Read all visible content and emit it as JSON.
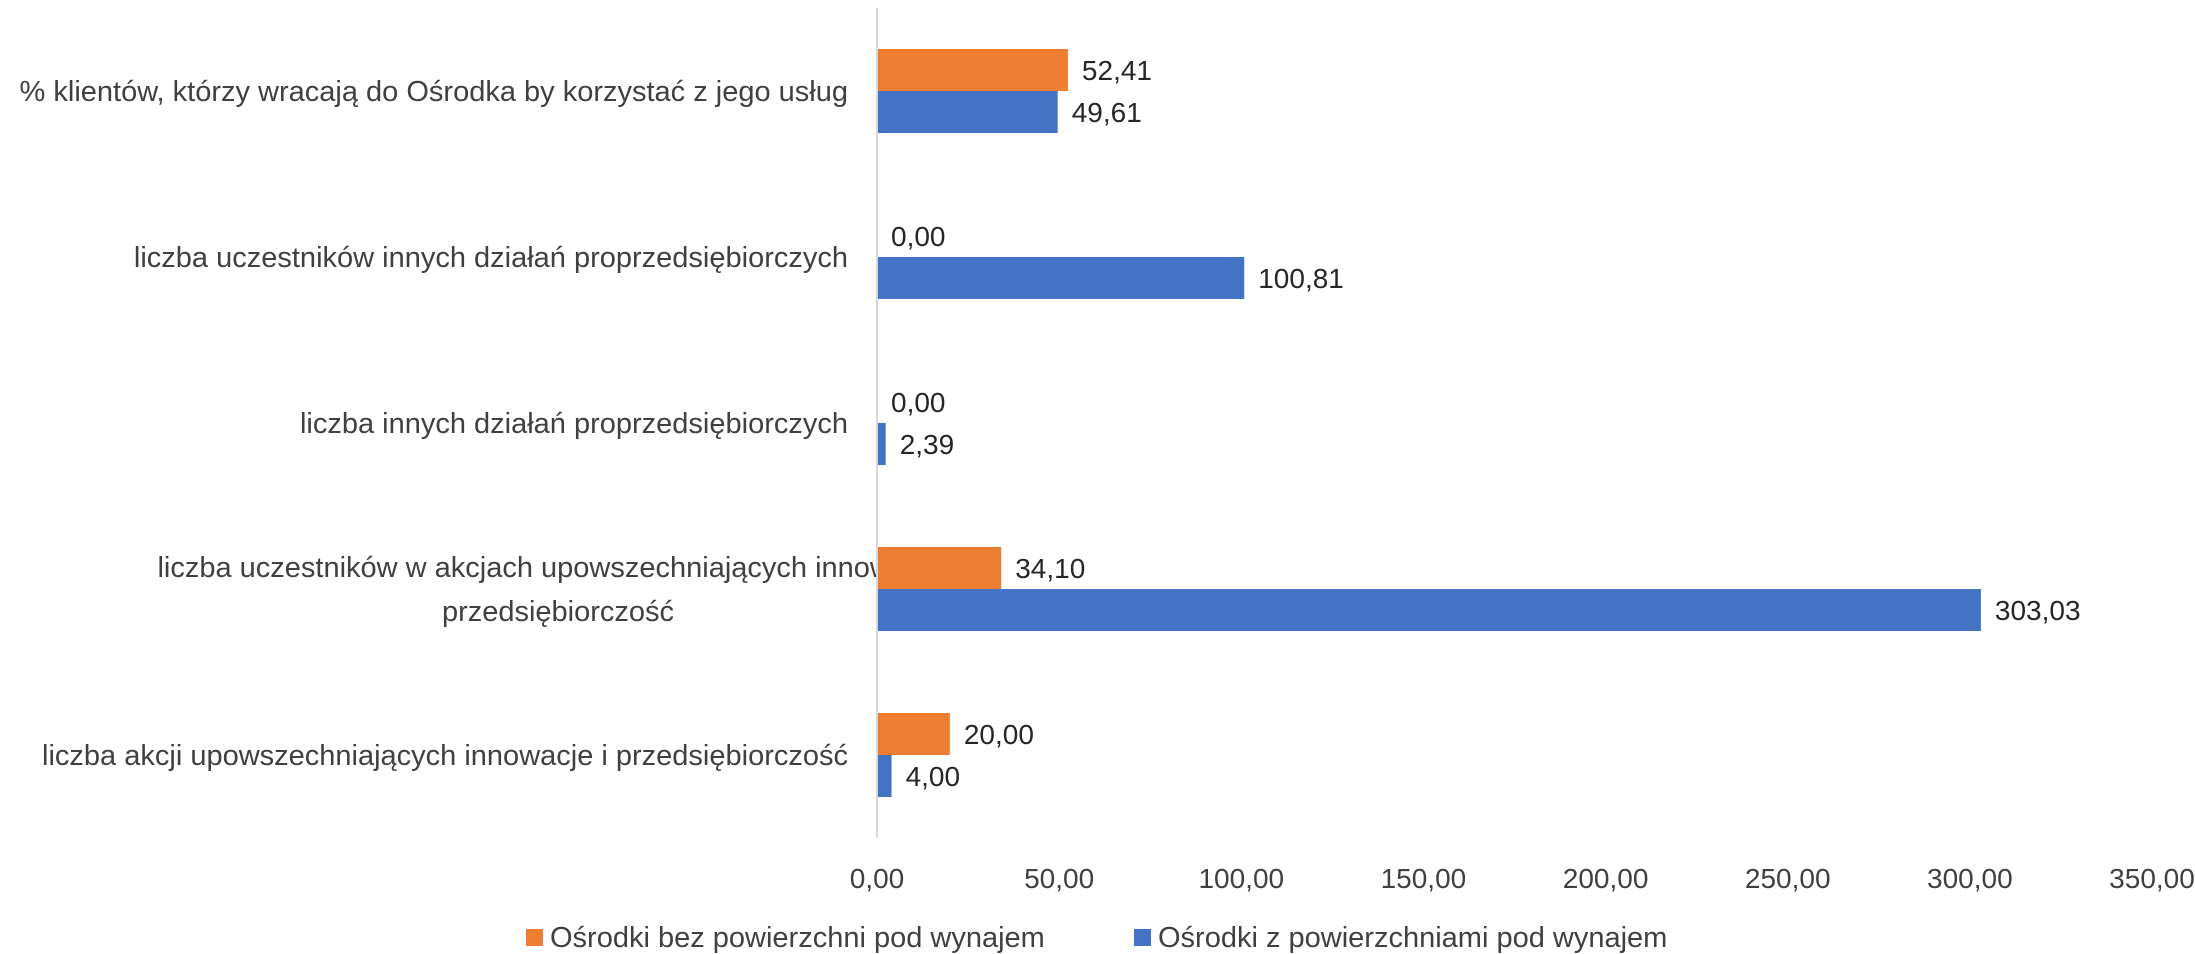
{
  "chart_data": {
    "type": "bar",
    "orientation": "horizontal",
    "categories": [
      [
        "% klientów, którzy wracają do Ośrodka by korzystać z jego usług"
      ],
      [
        "liczba uczestników innych działań proprzedsiębiorczych"
      ],
      [
        "liczba innych działań proprzedsiębiorczych"
      ],
      [
        "liczba uczestników w akcjach upowszechniających innowacje i",
        "przedsiębiorczość"
      ],
      [
        "liczba akcji upowszechniających innowacje i przedsiębiorczość"
      ]
    ],
    "series": [
      {
        "name": "Ośrodki bez powierzchni pod wynajem",
        "color": "#ED7D31",
        "values": [
          52.41,
          0.0,
          0.0,
          34.1,
          20.0
        ],
        "labels": [
          "52,41",
          "0,00",
          "0,00",
          "34,10",
          "20,00"
        ]
      },
      {
        "name": "Ośrodki z powierzchniami pod wynajem",
        "color": "#4472C4",
        "values": [
          49.61,
          100.81,
          2.39,
          303.03,
          4.0
        ],
        "labels": [
          "49,61",
          "100,81",
          "2,39",
          "303,03",
          "4,00"
        ]
      }
    ],
    "xlim": [
      0,
      350
    ],
    "x_ticks": [
      0,
      50,
      100,
      150,
      200,
      250,
      300,
      350
    ],
    "x_tick_labels": [
      "0,00",
      "50,00",
      "100,00",
      "150,00",
      "200,00",
      "250,00",
      "300,00",
      "350,00"
    ],
    "grid": false,
    "legend_position": "bottom",
    "axis_color": "#d9d9d9"
  }
}
